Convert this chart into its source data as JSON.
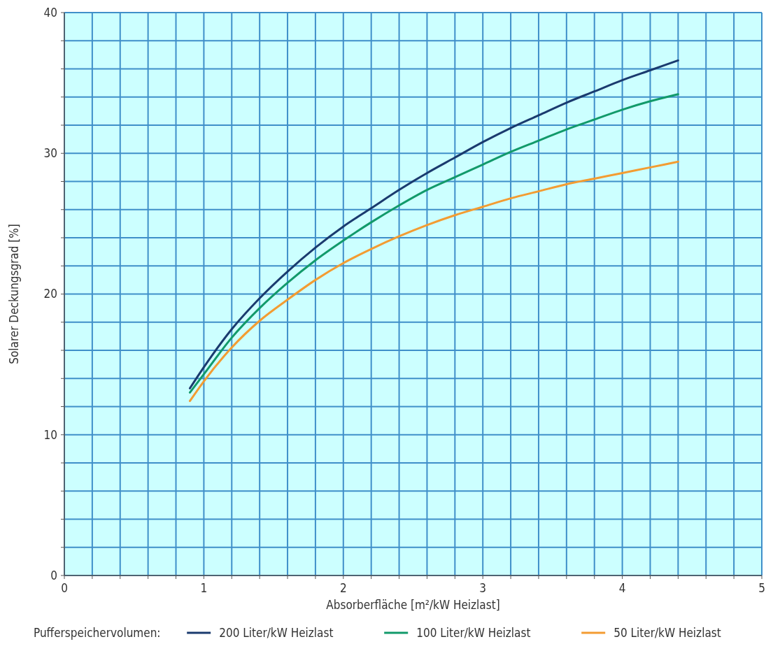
{
  "chart_data": {
    "type": "line",
    "xlabel": "Absorberfläche [m²/kW Heizlast]",
    "ylabel": "Solarer Deckungsgrad [%]",
    "legend_title": "Pufferspeichervolumen:",
    "legend": "bottom",
    "grid": true,
    "x": [
      0.9,
      1.0,
      1.2,
      1.4,
      1.6,
      1.8,
      2.0,
      2.2,
      2.4,
      2.6,
      2.8,
      3.0,
      3.2,
      3.4,
      3.6,
      3.8,
      4.0,
      4.2,
      4.4
    ],
    "series": [
      {
        "name": "200 Liter/kW Heizlast",
        "color": "#1a3a6e",
        "values": [
          13.3,
          14.8,
          17.5,
          19.7,
          21.6,
          23.3,
          24.8,
          26.1,
          27.4,
          28.6,
          29.7,
          30.8,
          31.8,
          32.7,
          33.6,
          34.4,
          35.2,
          35.9,
          36.6
        ]
      },
      {
        "name": "100 Liter/kW Heizlast",
        "color": "#129a6a",
        "values": [
          13.0,
          14.3,
          16.9,
          19.0,
          20.8,
          22.4,
          23.8,
          25.1,
          26.3,
          27.4,
          28.3,
          29.2,
          30.1,
          30.9,
          31.7,
          32.4,
          33.1,
          33.7,
          34.2
        ]
      },
      {
        "name": "50 Liter/kW Heizlast",
        "color": "#f39c32",
        "values": [
          12.4,
          13.8,
          16.2,
          18.1,
          19.6,
          21.0,
          22.2,
          23.2,
          24.1,
          24.9,
          25.6,
          26.2,
          26.8,
          27.3,
          27.8,
          28.2,
          28.6,
          29.0,
          29.4
        ]
      }
    ],
    "xlim": [
      0,
      5
    ],
    "ylim": [
      0,
      40
    ],
    "xticks": [
      0,
      {
        "value": 0.2,
        "label": null
      },
      {
        "value": 0.4,
        "label": null
      },
      {
        "value": 0.6,
        "label": null
      },
      {
        "value": 0.8,
        "label": null
      },
      1,
      {
        "value": 1.2,
        "label": null
      },
      {
        "value": 1.4,
        "label": null
      },
      {
        "value": 1.6,
        "label": null
      },
      {
        "value": 1.8,
        "label": null
      },
      2,
      {
        "value": 2.2,
        "label": null
      },
      {
        "value": 2.4,
        "label": null
      },
      {
        "value": 2.6,
        "label": null
      },
      {
        "value": 2.8,
        "label": null
      },
      3,
      {
        "value": 3.2,
        "label": null
      },
      {
        "value": 3.4,
        "label": null
      },
      {
        "value": 3.6,
        "label": null
      },
      {
        "value": 3.8,
        "label": null
      },
      4,
      {
        "value": 4.2,
        "label": null
      },
      {
        "value": 4.4,
        "label": null
      },
      {
        "value": 4.6,
        "label": null
      },
      {
        "value": 4.8,
        "label": null
      },
      5
    ],
    "yticks": [
      0,
      {
        "value": 2,
        "label": null
      },
      {
        "value": 4,
        "label": null
      },
      {
        "value": 6,
        "label": null
      },
      {
        "value": 8,
        "label": null
      },
      10,
      {
        "value": 12,
        "label": null
      },
      {
        "value": 14,
        "label": null
      },
      {
        "value": 16,
        "label": null
      },
      {
        "value": 18,
        "label": null
      },
      20,
      {
        "value": 22,
        "label": null
      },
      {
        "value": 24,
        "label": null
      },
      {
        "value": 26,
        "label": null
      },
      {
        "value": 28,
        "label": null
      },
      30,
      {
        "value": 32,
        "label": null
      },
      {
        "value": 34,
        "label": null
      },
      {
        "value": 36,
        "label": null
      },
      {
        "value": 38,
        "label": null
      },
      40
    ],
    "line_style": "solid",
    "marker": "none"
  }
}
